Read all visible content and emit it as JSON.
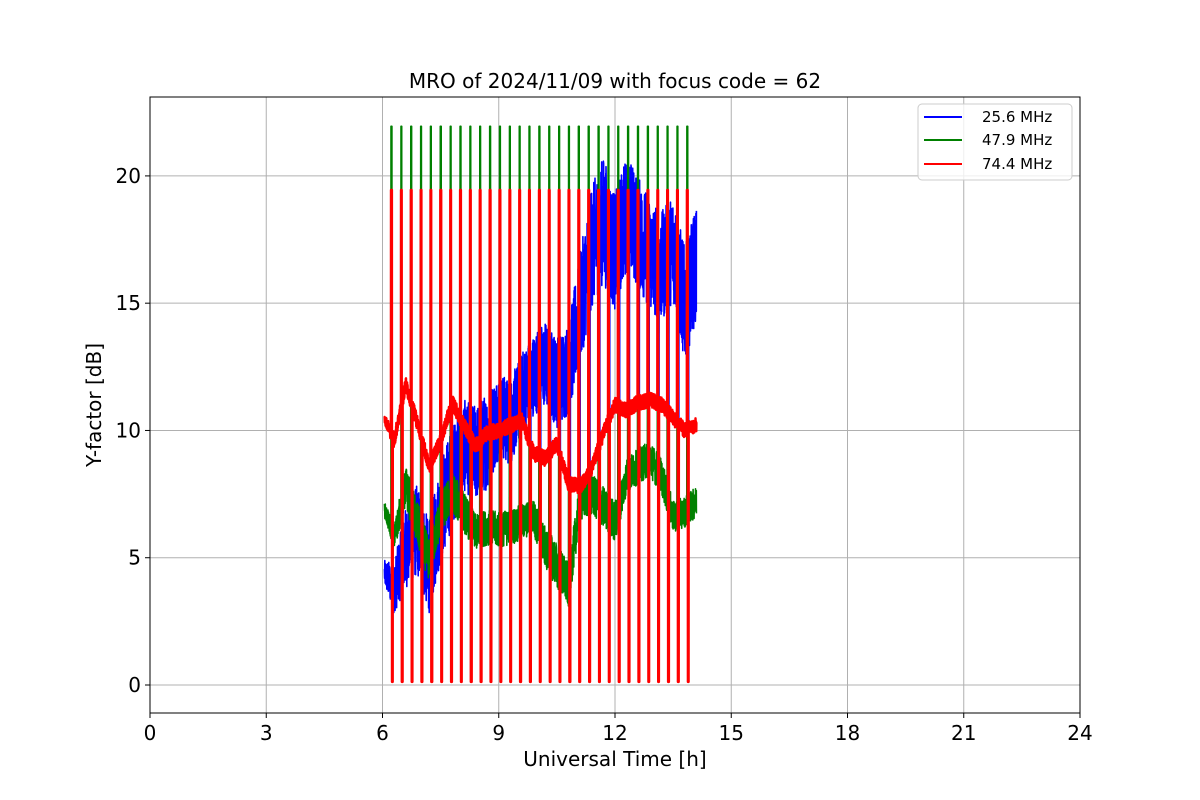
{
  "chart_data": {
    "type": "line",
    "title": "MRO of 2024/11/09 with focus code = 62",
    "xlabel": "Universal Time [h]",
    "ylabel": "Y-factor [dB]",
    "xlim": [
      0,
      24
    ],
    "ylim": [
      -1.1,
      23.1
    ],
    "xticks": [
      0,
      3,
      6,
      9,
      12,
      15,
      18,
      21,
      24
    ],
    "yticks": [
      0,
      5,
      10,
      15,
      20
    ],
    "grid": true,
    "legend_position": "top-right",
    "calibration": {
      "start_h": 6.22,
      "period_h": 0.2545,
      "count": 32,
      "width_h": 0.045,
      "bottom_db": 0.12,
      "top_db": {
        "47.9 MHz": 21.95,
        "74.4 MHz": 19.45
      }
    },
    "series": [
      {
        "name": "25.6 MHz",
        "color": "#0000ff",
        "x": [
          6.05,
          6.3,
          6.6,
          6.9,
          7.2,
          7.5,
          7.8,
          8.1,
          8.4,
          8.7,
          9.0,
          9.3,
          9.6,
          9.9,
          10.2,
          10.5,
          10.8,
          11.1,
          11.4,
          11.7,
          12.0,
          12.3,
          12.6,
          12.9,
          13.2,
          13.5,
          13.8,
          14.1
        ],
        "values": [
          4.4,
          3.8,
          5.4,
          6.1,
          4.6,
          6.8,
          8.2,
          9.4,
          9.1,
          9.6,
          10.6,
          10.3,
          11.5,
          12.2,
          12.6,
          11.9,
          12.4,
          14.8,
          17.2,
          18.3,
          17.0,
          18.6,
          17.8,
          16.9,
          16.4,
          17.2,
          14.9,
          16.6
        ],
        "amplitude": [
          0.5,
          1.0,
          1.6,
          1.8,
          1.8,
          2.0,
          2.0,
          1.8,
          1.9,
          1.9,
          1.7,
          1.7,
          1.6,
          1.6,
          1.7,
          1.8,
          1.8,
          2.2,
          2.4,
          2.5,
          2.3,
          2.3,
          2.2,
          2.2,
          2.2,
          2.1,
          2.3,
          2.2
        ]
      },
      {
        "name": "47.9 MHz",
        "color": "#008000",
        "x": [
          6.05,
          6.3,
          6.6,
          6.9,
          7.2,
          7.5,
          7.8,
          8.1,
          8.4,
          8.7,
          9.0,
          9.3,
          9.6,
          9.9,
          10.2,
          10.5,
          10.8,
          11.1,
          11.4,
          11.7,
          12.0,
          12.3,
          12.6,
          12.9,
          13.2,
          13.5,
          13.8,
          14.1
        ],
        "values": [
          6.9,
          5.8,
          7.8,
          6.3,
          4.9,
          6.7,
          7.6,
          6.8,
          6.0,
          6.2,
          6.1,
          6.2,
          6.4,
          6.6,
          5.4,
          4.7,
          3.9,
          7.2,
          7.5,
          7.0,
          6.4,
          8.2,
          8.6,
          8.9,
          8.2,
          6.6,
          6.8,
          7.2
        ],
        "amplitude": [
          0.3,
          0.5,
          0.8,
          0.9,
          0.8,
          0.8,
          0.8,
          0.8,
          0.7,
          0.7,
          0.7,
          0.7,
          0.7,
          0.7,
          0.8,
          0.9,
          0.9,
          0.8,
          0.8,
          0.8,
          0.8,
          0.7,
          0.7,
          0.7,
          0.7,
          0.6,
          0.6,
          0.6
        ]
      },
      {
        "name": "74.4 MHz",
        "color": "#ff0000",
        "x": [
          6.05,
          6.3,
          6.6,
          6.9,
          7.2,
          7.5,
          7.8,
          8.1,
          8.4,
          8.7,
          9.0,
          9.3,
          9.6,
          9.9,
          10.2,
          10.5,
          10.8,
          11.1,
          11.4,
          11.7,
          12.0,
          12.3,
          12.6,
          12.9,
          13.2,
          13.5,
          13.8,
          14.1
        ],
        "values": [
          10.5,
          9.6,
          11.8,
          10.3,
          8.6,
          9.6,
          11.1,
          10.2,
          9.4,
          9.9,
          10.0,
          10.2,
          10.4,
          9.1,
          8.9,
          9.5,
          7.9,
          7.8,
          8.5,
          9.9,
          11.0,
          10.8,
          11.1,
          11.2,
          11.0,
          10.5,
          10.0,
          10.2
        ],
        "amplitude": [
          0.2,
          0.3,
          0.3,
          0.3,
          0.3,
          0.3,
          0.3,
          0.3,
          0.3,
          0.3,
          0.3,
          0.3,
          0.3,
          0.3,
          0.3,
          0.3,
          0.3,
          0.3,
          0.3,
          0.3,
          0.3,
          0.3,
          0.3,
          0.3,
          0.3,
          0.3,
          0.3,
          0.3
        ]
      }
    ]
  }
}
